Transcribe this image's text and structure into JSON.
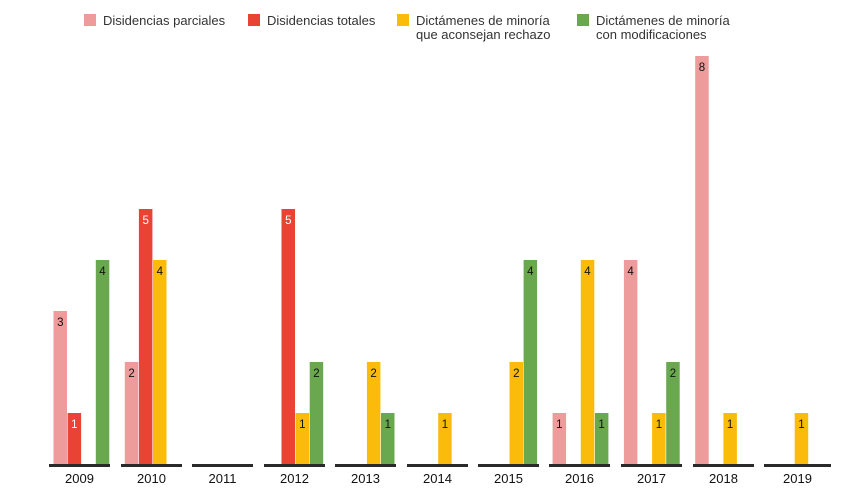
{
  "chart_data": {
    "type": "bar",
    "categories": [
      "2009",
      "2010",
      "2011",
      "2012",
      "2013",
      "2014",
      "2015",
      "2016",
      "2017",
      "2018",
      "2019"
    ],
    "series": [
      {
        "name": "Disidencias parciales",
        "name_lines": [
          "Disidencias parciales"
        ],
        "color": "#ee9b9b",
        "label_color": "#111111",
        "values": [
          3,
          2,
          0,
          0,
          0,
          0,
          0,
          1,
          4,
          8,
          0
        ]
      },
      {
        "name": "Disidencias totales",
        "name_lines": [
          "Disidencias totales"
        ],
        "color": "#e94334",
        "label_color": "#ffffff",
        "values": [
          1,
          5,
          0,
          5,
          0,
          0,
          0,
          0,
          0,
          0,
          0
        ]
      },
      {
        "name": "Dictámenes de minoría que aconsejan rechazo",
        "name_lines": [
          "Dictámenes de minoría",
          "que aconsejan rechazo"
        ],
        "color": "#fbbb0b",
        "label_color": "#111111",
        "values": [
          0,
          4,
          0,
          1,
          2,
          1,
          2,
          4,
          1,
          1,
          1
        ]
      },
      {
        "name": "Dictámenes de minoría con modificaciones",
        "name_lines": [
          "Dictámenes de minoría",
          "con modificaciones"
        ],
        "color": "#69a84f",
        "label_color": "#111111",
        "values": [
          4,
          0,
          0,
          2,
          1,
          0,
          4,
          1,
          2,
          0,
          0
        ]
      }
    ],
    "ylim": [
      0,
      8
    ],
    "grid": false,
    "legend_position": "top",
    "xlabel": "",
    "ylabel": ""
  }
}
